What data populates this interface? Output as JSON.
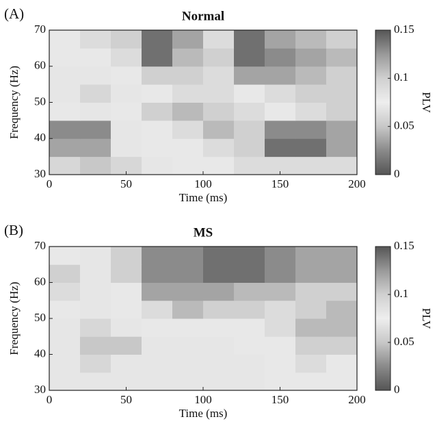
{
  "chart_data": [
    {
      "type": "heatmap",
      "panel_label": "(A)",
      "title": "Normal",
      "xlabel": "Time (ms)",
      "ylabel": "Frequency (Hz)",
      "colorbar_label": "PLV",
      "x": [
        0,
        20,
        40,
        60,
        80,
        100,
        120,
        140,
        160,
        180,
        200
      ],
      "y": [
        30,
        35,
        40,
        45,
        50,
        55,
        60,
        65,
        70
      ],
      "values": [
        [
          0.06,
          0.05,
          0.06,
          0.07,
          0.08,
          0.08,
          0.09,
          0.09,
          0.09,
          0.09
        ],
        [
          0.12,
          0.12,
          0.07,
          0.08,
          0.08,
          0.09,
          0.1,
          0.14,
          0.14,
          0.12
        ],
        [
          0.13,
          0.13,
          0.07,
          0.08,
          0.09,
          0.11,
          0.1,
          0.13,
          0.13,
          0.12
        ],
        [
          0.08,
          0.07,
          0.08,
          0.1,
          0.11,
          0.1,
          0.09,
          0.08,
          0.09,
          0.1
        ],
        [
          0.07,
          0.06,
          0.07,
          0.08,
          0.09,
          0.09,
          0.08,
          0.09,
          0.1,
          0.1
        ],
        [
          0.07,
          0.07,
          0.08,
          0.1,
          0.1,
          0.09,
          0.12,
          0.12,
          0.11,
          0.1
        ],
        [
          0.08,
          0.08,
          0.09,
          0.14,
          0.11,
          0.1,
          0.14,
          0.13,
          0.12,
          0.11
        ],
        [
          0.08,
          0.09,
          0.1,
          0.14,
          0.12,
          0.09,
          0.14,
          0.12,
          0.11,
          0.1
        ]
      ],
      "xlim": [
        0,
        200
      ],
      "ylim": [
        30,
        70
      ],
      "xticks": [
        0,
        50,
        100,
        150,
        200
      ],
      "yticks": [
        30,
        40,
        50,
        60,
        70
      ],
      "clim": [
        0,
        0.15
      ],
      "cticks": [
        0,
        0.05,
        0.1,
        0.15
      ],
      "colormap": [
        "#555555",
        "#8a8a8a",
        "#c8c8c8",
        "#eeeeee",
        "#d0d0d0",
        "#999999",
        "#555555"
      ]
    },
    {
      "type": "heatmap",
      "panel_label": "(B)",
      "title": "MS",
      "xlabel": "Time (ms)",
      "ylabel": "Frequency (Hz)",
      "colorbar_label": "PLV",
      "x": [
        0,
        20,
        40,
        60,
        80,
        100,
        120,
        140,
        160,
        180,
        200
      ],
      "y": [
        30,
        35,
        40,
        45,
        50,
        55,
        60,
        65,
        70
      ],
      "values": [
        [
          0.07,
          0.07,
          0.07,
          0.07,
          0.07,
          0.07,
          0.07,
          0.08,
          0.08,
          0.08
        ],
        [
          0.07,
          0.06,
          0.07,
          0.07,
          0.07,
          0.07,
          0.07,
          0.08,
          0.09,
          0.08
        ],
        [
          0.07,
          0.05,
          0.05,
          0.07,
          0.07,
          0.07,
          0.08,
          0.08,
          0.1,
          0.1
        ],
        [
          0.07,
          0.06,
          0.07,
          0.08,
          0.08,
          0.08,
          0.08,
          0.09,
          0.11,
          0.11
        ],
        [
          0.08,
          0.07,
          0.08,
          0.09,
          0.11,
          0.1,
          0.1,
          0.09,
          0.1,
          0.11
        ],
        [
          0.09,
          0.07,
          0.08,
          0.12,
          0.12,
          0.12,
          0.11,
          0.11,
          0.1,
          0.1
        ],
        [
          0.1,
          0.07,
          0.1,
          0.13,
          0.13,
          0.14,
          0.14,
          0.13,
          0.12,
          0.12
        ],
        [
          0.08,
          0.07,
          0.1,
          0.13,
          0.13,
          0.14,
          0.14,
          0.13,
          0.12,
          0.12
        ]
      ],
      "xlim": [
        0,
        200
      ],
      "ylim": [
        30,
        70
      ],
      "xticks": [
        0,
        50,
        100,
        150,
        200
      ],
      "yticks": [
        30,
        40,
        50,
        60,
        70
      ],
      "clim": [
        0,
        0.15
      ],
      "cticks": [
        0,
        0.05,
        0.1,
        0.15
      ],
      "colormap": [
        "#555555",
        "#8a8a8a",
        "#c8c8c8",
        "#eeeeee",
        "#d0d0d0",
        "#999999",
        "#555555"
      ]
    }
  ]
}
